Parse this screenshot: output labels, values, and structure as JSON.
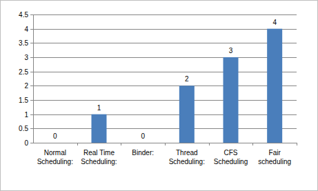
{
  "chart_data": {
    "type": "bar",
    "categories": [
      "Normal Scheduling:",
      "Real Time Scheduling:",
      "Binder:",
      "Thread Scheduling:",
      "CFS Scheduling",
      "Fair scheduling"
    ],
    "values": [
      0,
      1,
      0,
      2,
      3,
      4
    ],
    "color": "#4a7ebb",
    "ylim": [
      0,
      4.5
    ],
    "yticks": [
      0,
      0.5,
      1,
      1.5,
      2,
      2.5,
      3,
      3.5,
      4,
      4.5
    ],
    "grid": true,
    "data_labels": true
  }
}
